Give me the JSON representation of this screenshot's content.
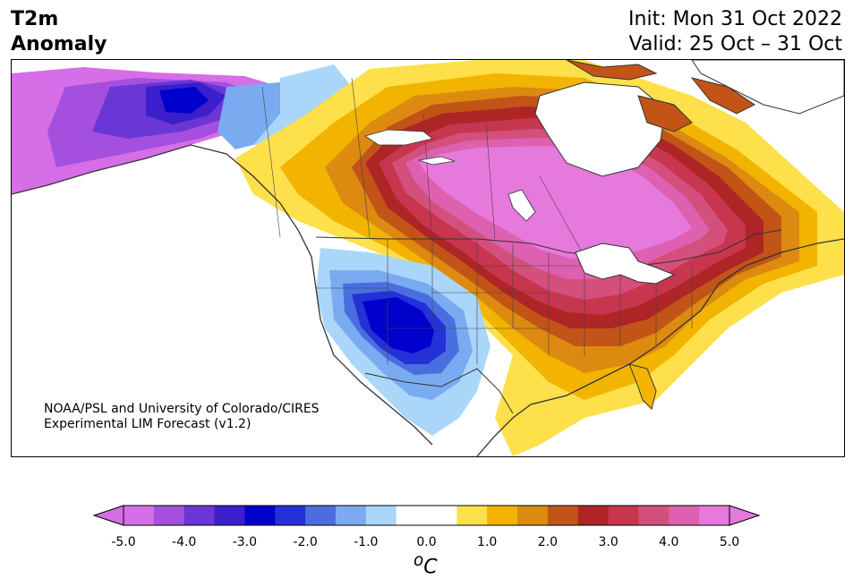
{
  "header": {
    "title_line1": "T2m",
    "title_line2": "Anomaly",
    "init": "Init: Mon 31 Oct 2022",
    "valid": "Valid: 25 Oct – 31 Oct"
  },
  "credit": {
    "line1": "NOAA/PSL and University of Colorado/CIRES",
    "line2": "Experimental LIM Forecast (v1.2)"
  },
  "colorbar": {
    "units": "oC",
    "colors": [
      "#d66ee8",
      "#a44fde",
      "#6a36d6",
      "#3b1fcc",
      "#0000cc",
      "#2431d6",
      "#4a6ee0",
      "#7aaaf0",
      "#aad6fa",
      "#ffffff",
      "#ffffff",
      "#fde04a",
      "#f2b400",
      "#dc8a10",
      "#c25418",
      "#ae2526",
      "#c8354e",
      "#d4507c",
      "#de60b0",
      "#e679dc"
    ],
    "tick_labels": [
      "-5.0",
      "-4.0",
      "-3.0",
      "-2.0",
      "-1.0",
      "0.0",
      "1.0",
      "2.0",
      "3.0",
      "4.0",
      "5.0"
    ]
  }
}
